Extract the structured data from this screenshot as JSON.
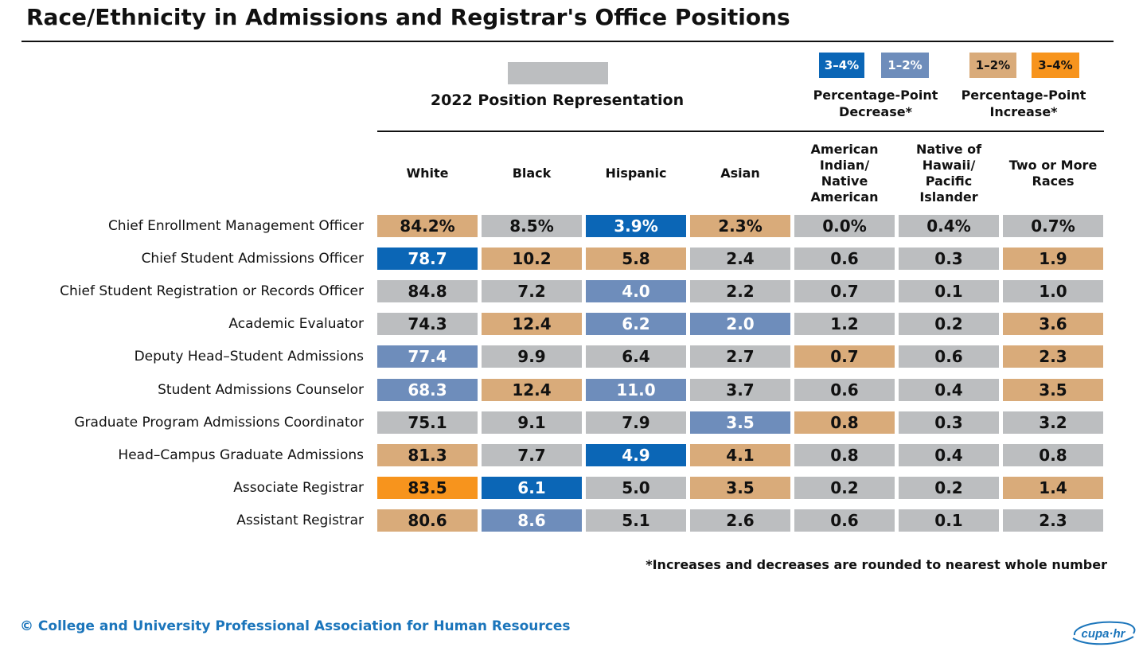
{
  "chart_data": {
    "type": "table",
    "title": "Race/Ethnicity in Admissions and Registrar's Office Positions",
    "colors": {
      "none": "#bcbec0",
      "dec_small": "#6e8dbb",
      "dec_large": "#0b66b6",
      "inc_small": "#d9ab7a",
      "inc_large": "#f7941d"
    },
    "legend": {
      "representation": {
        "key": "none",
        "label": "2022 Position Representation"
      },
      "decrease": {
        "label": "Percentage-Point Decrease*",
        "items": [
          {
            "key": "dec_large",
            "label": "3–4%"
          },
          {
            "key": "dec_small",
            "label": "1–2%"
          }
        ]
      },
      "increase": {
        "label": "Percentage-Point Increase*",
        "items": [
          {
            "key": "inc_small",
            "label": "1–2%"
          },
          {
            "key": "inc_large",
            "label": "3–4%"
          }
        ]
      }
    },
    "columns": [
      "White",
      "Black",
      "Hispanic",
      "Asian",
      "American Indian/ Native American",
      "Native of Hawaii/ Pacific Islander",
      "Two or More Races"
    ],
    "rows": [
      {
        "label": "Chief Enrollment Management Officer",
        "values": [
          "84.2%",
          "8.5%",
          "3.9%",
          "2.3%",
          "0.0%",
          "0.4%",
          "0.7%"
        ],
        "changes": [
          "inc_small",
          "none",
          "dec_large",
          "inc_small",
          "none",
          "none",
          "none"
        ]
      },
      {
        "label": "Chief Student Admissions Officer",
        "values": [
          "78.7",
          "10.2",
          "5.8",
          "2.4",
          "0.6",
          "0.3",
          "1.9"
        ],
        "changes": [
          "dec_large",
          "inc_small",
          "inc_small",
          "none",
          "none",
          "none",
          "inc_small"
        ]
      },
      {
        "label": "Chief Student Registration or Records Officer",
        "values": [
          "84.8",
          "7.2",
          "4.0",
          "2.2",
          "0.7",
          "0.1",
          "1.0"
        ],
        "changes": [
          "none",
          "none",
          "dec_small",
          "none",
          "none",
          "none",
          "none"
        ]
      },
      {
        "label": "Academic Evaluator",
        "values": [
          "74.3",
          "12.4",
          "6.2",
          "2.0",
          "1.2",
          "0.2",
          "3.6"
        ],
        "changes": [
          "none",
          "inc_small",
          "dec_small",
          "dec_small",
          "none",
          "none",
          "inc_small"
        ]
      },
      {
        "label": "Deputy Head–Student Admissions",
        "values": [
          "77.4",
          "9.9",
          "6.4",
          "2.7",
          "0.7",
          "0.6",
          "2.3"
        ],
        "changes": [
          "dec_small",
          "none",
          "none",
          "none",
          "inc_small",
          "none",
          "inc_small"
        ]
      },
      {
        "label": "Student Admissions Counselor",
        "values": [
          "68.3",
          "12.4",
          "11.0",
          "3.7",
          "0.6",
          "0.4",
          "3.5"
        ],
        "changes": [
          "dec_small",
          "inc_small",
          "dec_small",
          "none",
          "none",
          "none",
          "inc_small"
        ]
      },
      {
        "label": "Graduate Program Admissions Coordinator",
        "values": [
          "75.1",
          "9.1",
          "7.9",
          "3.5",
          "0.8",
          "0.3",
          "3.2"
        ],
        "changes": [
          "none",
          "none",
          "none",
          "dec_small",
          "inc_small",
          "none",
          "none"
        ]
      },
      {
        "label": "Head–Campus Graduate Admissions",
        "values": [
          "81.3",
          "7.7",
          "4.9",
          "4.1",
          "0.8",
          "0.4",
          "0.8"
        ],
        "changes": [
          "inc_small",
          "none",
          "dec_large",
          "inc_small",
          "none",
          "none",
          "none"
        ]
      },
      {
        "label": "Associate Registrar",
        "values": [
          "83.5",
          "6.1",
          "5.0",
          "3.5",
          "0.2",
          "0.2",
          "1.4"
        ],
        "changes": [
          "inc_large",
          "dec_large",
          "none",
          "inc_small",
          "none",
          "none",
          "inc_small"
        ]
      },
      {
        "label": "Assistant Registrar",
        "values": [
          "80.6",
          "8.6",
          "5.1",
          "2.6",
          "0.6",
          "0.1",
          "2.3"
        ],
        "changes": [
          "inc_small",
          "dec_small",
          "none",
          "none",
          "none",
          "none",
          "none"
        ]
      }
    ],
    "footnote": "*Increases and decreases are rounded to nearest whole number"
  },
  "footer": {
    "copyright": "© College and University Professional Association for Human Resources",
    "logo_text": "cupa·hr",
    "logo_icon": "cupa-hr-logo-icon"
  }
}
